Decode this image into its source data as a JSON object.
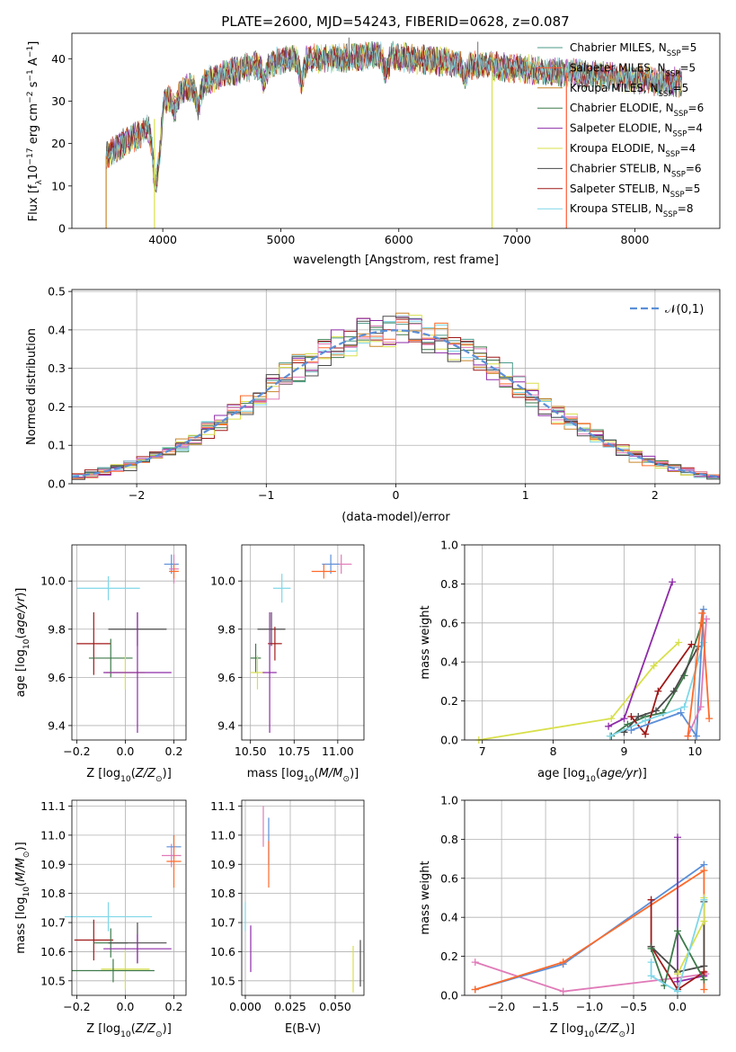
{
  "chart_data": [
    {
      "type": "line",
      "id": "spectrum",
      "title": "PLATE=2600, MJD=54243, FIBERID=0628, z=0.087",
      "xlabel": "wavelength [Angstrom, rest frame]",
      "ylabel": "Flux [f_λ 10^-17 erg cm^-2 s^-1 A^-1]",
      "xlim": [
        3230,
        8720
      ],
      "ylim": [
        0,
        46
      ],
      "xticks": [
        4000,
        5000,
        6000,
        7000,
        8000
      ],
      "yticks": [
        0,
        10,
        20,
        30,
        40
      ],
      "grid": false,
      "legend_position": "upper right",
      "continuum_x": [
        3520,
        3600,
        3800,
        3900,
        4000,
        4100,
        4300,
        4500,
        4700,
        4900,
        5100,
        5300,
        5500,
        5700,
        5900,
        6100,
        6300,
        6500,
        6700,
        6900,
        7100,
        7300,
        7500,
        7700,
        7900,
        8100,
        8300
      ],
      "continuum_y": [
        17,
        19,
        22,
        24,
        30,
        32,
        34,
        36,
        38,
        39,
        40,
        40,
        40,
        40.5,
        41,
        40,
        39.5,
        39,
        38.5,
        38,
        37.5,
        37,
        36.5,
        36,
        35.5,
        35,
        34.5
      ],
      "series": [
        {
          "name": "Chabrier MILES, N_SSP=5",
          "label": "Chabrier MILES, N",
          "n": "=5",
          "color": "#4c9a8a"
        },
        {
          "name": "Salpeter MILES, N_SSP=5",
          "label": "Salpeter MILES, N",
          "n": "=5",
          "color": "#ff5a35"
        },
        {
          "name": "Kroupa MILES, N_SSP=5",
          "label": "Kroupa MILES, N",
          "n": "=5",
          "color": "#c8862a"
        },
        {
          "name": "Chabrier ELODIE, N_SSP=6",
          "label": "Chabrier ELODIE, N",
          "n": "=6",
          "color": "#3d7a4a"
        },
        {
          "name": "Salpeter ELODIE, N_SSP=4",
          "label": "Salpeter ELODIE, N",
          "n": "=4",
          "color": "#8e2ba8"
        },
        {
          "name": "Kroupa ELODIE, N_SSP=4",
          "label": "Kroupa ELODIE, N",
          "n": "=4",
          "color": "#d8e04a"
        },
        {
          "name": "Chabrier STELIB, N_SSP=6",
          "label": "Chabrier STELIB, N",
          "n": "=6",
          "color": "#4a4a4a"
        },
        {
          "name": "Salpeter STELIB, N_SSP=5",
          "label": "Salpeter STELIB, N",
          "n": "=5",
          "color": "#a01818"
        },
        {
          "name": "Kroupa STELIB, N_SSP=8",
          "label": "Kroupa STELIB, N",
          "n": "=8",
          "color": "#7fd7e8"
        }
      ],
      "legend_subscript": "SSP",
      "drops": [
        {
          "x": 3520,
          "color": "#c8862a"
        },
        {
          "x": 3930,
          "color": "#d8e04a"
        },
        {
          "x": 6790,
          "color": "#d8e04a"
        },
        {
          "x": 7420,
          "color": "#ff5a35"
        }
      ]
    },
    {
      "type": "step",
      "id": "residuals",
      "xlabel": "(data-model)/error",
      "ylabel": "Normed distribution",
      "xlim": [
        -2.5,
        2.5
      ],
      "ylim": [
        0,
        0.505
      ],
      "xticks": [
        -2,
        -1,
        0,
        1,
        2
      ],
      "yticks": [
        0.0,
        0.1,
        0.2,
        0.3,
        0.4,
        0.5
      ],
      "grid": true,
      "legend": "𝒩(0,1)",
      "legend_position": "upper right",
      "bins": 50,
      "series_colors": [
        "#3d7a4a",
        "#4c9a8a",
        "#a01818",
        "#c8862a",
        "#d8e04a",
        "#8e2ba8",
        "#7fd7e8",
        "#ff6a2a",
        "#e07ab8",
        "#4a4a4a"
      ]
    },
    {
      "type": "errorbar",
      "id": "age_vs_z",
      "xlabel": "Z [log10(Z/Z⊙)]",
      "ylabel": "age [log10(age/yr)]",
      "xlim": [
        -0.22,
        0.25
      ],
      "ylim": [
        9.34,
        10.15
      ],
      "xticks": [
        -0.2,
        0.0,
        0.2
      ],
      "yticks": [
        9.4,
        9.6,
        9.8,
        10.0
      ],
      "grid": true,
      "points": [
        {
          "x": -0.07,
          "y": 9.97,
          "xerr": 0.13,
          "yerr": 0.05,
          "color": "#7fd7e8"
        },
        {
          "x": -0.13,
          "y": 9.74,
          "xerr": 0.07,
          "yerr": 0.13,
          "color": "#a01818"
        },
        {
          "x": -0.06,
          "y": 9.68,
          "xerr": 0.09,
          "yerr": 0.08,
          "color": "#3d7a4a"
        },
        {
          "x": 0.05,
          "y": 9.8,
          "xerr": 0.12,
          "yerr": 0.07,
          "color": "#4a4a4a"
        },
        {
          "x": 0.0,
          "y": 9.62,
          "xerr": 0.08,
          "yerr": 0.07,
          "color": "#d8e04a"
        },
        {
          "x": 0.05,
          "y": 9.62,
          "xerr": 0.14,
          "yerr": 0.25,
          "color": "#8e2ba8"
        },
        {
          "x": 0.19,
          "y": 10.07,
          "xerr": 0.03,
          "yerr": 0.04,
          "color": "#5b8fd8"
        },
        {
          "x": 0.2,
          "y": 10.05,
          "xerr": 0.02,
          "yerr": 0.06,
          "color": "#e07ab8"
        },
        {
          "x": 0.2,
          "y": 10.04,
          "xerr": 0.02,
          "yerr": 0.03,
          "color": "#ff6a2a"
        }
      ]
    },
    {
      "type": "errorbar",
      "id": "age_vs_mass",
      "xlabel": "mass [log10(M/M⊙)]",
      "ylabel": "",
      "xlim": [
        10.45,
        11.15
      ],
      "ylim": [
        9.34,
        10.15
      ],
      "xticks": [
        10.5,
        10.75,
        11.0
      ],
      "yticks": [
        9.4,
        9.6,
        9.8,
        10.0
      ],
      "grid": true,
      "points": [
        {
          "x": 10.68,
          "y": 9.97,
          "xerr": 0.05,
          "yerr": 0.06,
          "color": "#7fd7e8"
        },
        {
          "x": 10.62,
          "y": 9.8,
          "xerr": 0.08,
          "yerr": 0.07,
          "color": "#4a4a4a"
        },
        {
          "x": 10.64,
          "y": 9.74,
          "xerr": 0.04,
          "yerr": 0.07,
          "color": "#a01818"
        },
        {
          "x": 10.53,
          "y": 9.68,
          "xerr": 0.03,
          "yerr": 0.06,
          "color": "#3d7a4a"
        },
        {
          "x": 10.54,
          "y": 9.62,
          "xerr": 0.04,
          "yerr": 0.07,
          "color": "#d8e04a"
        },
        {
          "x": 10.61,
          "y": 9.62,
          "xerr": 0.04,
          "yerr": 0.25,
          "color": "#8e2ba8"
        },
        {
          "x": 11.02,
          "y": 10.07,
          "xerr": 0.06,
          "yerr": 0.04,
          "color": "#e07ab8"
        },
        {
          "x": 10.96,
          "y": 10.07,
          "xerr": 0.05,
          "yerr": 0.04,
          "color": "#5b8fd8"
        },
        {
          "x": 10.92,
          "y": 10.04,
          "xerr": 0.07,
          "yerr": 0.03,
          "color": "#ff6a2a"
        }
      ]
    },
    {
      "type": "line",
      "id": "weight_vs_age",
      "xlabel": "age [log10(age/yr)]",
      "ylabel": "mass weight",
      "xlim": [
        6.75,
        10.35
      ],
      "ylim": [
        0,
        1.0
      ],
      "xticks": [
        7,
        8,
        9,
        10
      ],
      "yticks": [
        0.0,
        0.2,
        0.4,
        0.6,
        0.8,
        1.0
      ],
      "grid": true,
      "series": [
        {
          "color": "#d8e04a",
          "x": [
            6.95,
            8.82,
            9.42,
            9.77
          ],
          "y": [
            0.0,
            0.11,
            0.38,
            0.5
          ]
        },
        {
          "color": "#8e2ba8",
          "x": [
            8.78,
            9.0,
            9.68
          ],
          "y": [
            0.07,
            0.11,
            0.81
          ]
        },
        {
          "color": "#3d7a4a",
          "x": [
            8.82,
            9.05,
            9.3,
            9.55,
            9.85,
            10.1
          ],
          "y": [
            0.02,
            0.08,
            0.12,
            0.14,
            0.33,
            0.6
          ]
        },
        {
          "color": "#4a4a4a",
          "x": [
            9.0,
            9.2,
            9.45,
            9.7,
            10.05
          ],
          "y": [
            0.04,
            0.12,
            0.15,
            0.25,
            0.48
          ]
        },
        {
          "color": "#a01818",
          "x": [
            9.1,
            9.3,
            9.48,
            9.95
          ],
          "y": [
            0.12,
            0.03,
            0.25,
            0.49
          ]
        },
        {
          "color": "#7fd7e8",
          "x": [
            8.8,
            9.3,
            9.85,
            10.12
          ],
          "y": [
            0.02,
            0.1,
            0.17,
            0.5
          ]
        },
        {
          "color": "#5b8fd8",
          "x": [
            9.1,
            9.8,
            10.02,
            10.12
          ],
          "y": [
            0.05,
            0.14,
            0.02,
            0.67
          ]
        },
        {
          "color": "#e07ab8",
          "x": [
            9.9,
            10.08,
            10.16
          ],
          "y": [
            0.02,
            0.17,
            0.62
          ]
        },
        {
          "color": "#ff6a2a",
          "x": [
            9.9,
            10.1,
            10.2
          ],
          "y": [
            0.02,
            0.65,
            0.11
          ]
        }
      ]
    },
    {
      "type": "errorbar",
      "id": "mass_vs_z",
      "xlabel": "Z [log10(Z/Z⊙)]",
      "ylabel": "mass [log10(M/M⊙)]",
      "xlim": [
        -0.22,
        0.25
      ],
      "ylim": [
        10.45,
        11.12
      ],
      "xticks": [
        -0.2,
        0.0,
        0.2
      ],
      "yticks": [
        10.5,
        10.6,
        10.7,
        10.8,
        10.9,
        11.0,
        11.1
      ],
      "grid": true,
      "points": [
        {
          "x": -0.07,
          "y": 10.72,
          "xerr": 0.18,
          "yerr": 0.05,
          "color": "#7fd7e8"
        },
        {
          "x": -0.13,
          "y": 10.64,
          "xerr": 0.08,
          "yerr": 0.07,
          "color": "#a01818"
        },
        {
          "x": -0.06,
          "y": 10.63,
          "xerr": 0.07,
          "yerr": 0.05,
          "color": "#3d7a4a"
        },
        {
          "x": 0.05,
          "y": 10.63,
          "xerr": 0.12,
          "yerr": 0.07,
          "color": "#4a4a4a"
        },
        {
          "x": 0.0,
          "y": 10.54,
          "xerr": 0.1,
          "yerr": 0.07,
          "color": "#d8e04a"
        },
        {
          "x": 0.05,
          "y": 10.61,
          "xerr": 0.14,
          "yerr": 0.05,
          "color": "#8e2ba8"
        },
        {
          "x": -0.05,
          "y": 10.535,
          "xerr": 0.17,
          "yerr": 0.04,
          "color": "#3d7a4a"
        },
        {
          "x": 0.19,
          "y": 10.93,
          "xerr": 0.04,
          "yerr": 0.04,
          "color": "#e07ab8"
        },
        {
          "x": 0.2,
          "y": 10.96,
          "xerr": 0.03,
          "yerr": 0.04,
          "color": "#5b8fd8"
        },
        {
          "x": 0.2,
          "y": 10.91,
          "xerr": 0.03,
          "yerr": 0.09,
          "color": "#ff6a2a"
        }
      ]
    },
    {
      "type": "errorbar",
      "id": "mass_vs_ebv",
      "xlabel": "E(B-V)",
      "ylabel": "",
      "xlim": [
        -0.002,
        0.066
      ],
      "ylim": [
        10.45,
        11.12
      ],
      "xticks": [
        0.0,
        0.025,
        0.05
      ],
      "yticks": [
        10.5,
        10.6,
        10.7,
        10.8,
        10.9,
        11.0,
        11.1
      ],
      "grid": true,
      "points": [
        {
          "x": 0.0,
          "y": 10.72,
          "xerr": 0.0,
          "yerr": 0.05,
          "color": "#7fd7e8"
        },
        {
          "x": 0.003,
          "y": 10.61,
          "xerr": 0.0,
          "yerr": 0.08,
          "color": "#8e2ba8"
        },
        {
          "x": 0.01,
          "y": 11.03,
          "xerr": 0.0,
          "yerr": 0.07,
          "color": "#e07ab8"
        },
        {
          "x": 0.013,
          "y": 10.98,
          "xerr": 0.0,
          "yerr": 0.08,
          "color": "#5b8fd8"
        },
        {
          "x": 0.013,
          "y": 10.9,
          "xerr": 0.0,
          "yerr": 0.08,
          "color": "#ff6a2a"
        },
        {
          "x": 0.06,
          "y": 10.54,
          "xerr": 0.0,
          "yerr": 0.08,
          "color": "#d8e04a"
        },
        {
          "x": 0.064,
          "y": 10.56,
          "xerr": 0.0,
          "yerr": 0.08,
          "color": "#4a4a4a"
        }
      ]
    },
    {
      "type": "line",
      "id": "weight_vs_z",
      "xlabel": "Z [log10(Z/Z⊙)]",
      "ylabel": "mass weight",
      "xlim": [
        -2.42,
        0.48
      ],
      "ylim": [
        0,
        1.0
      ],
      "xticks": [
        -2.0,
        -1.5,
        -1.0,
        -0.5,
        0.0
      ],
      "yticks": [
        0.0,
        0.2,
        0.4,
        0.6,
        0.8,
        1.0
      ],
      "grid": true,
      "series": [
        {
          "color": "#e07ab8",
          "x": [
            -2.3,
            -1.3,
            0.0,
            0.32
          ],
          "y": [
            0.17,
            0.02,
            0.09,
            0.11
          ]
        },
        {
          "color": "#5b8fd8",
          "x": [
            -2.3,
            -1.3,
            0.3
          ],
          "y": [
            0.03,
            0.16,
            0.67
          ]
        },
        {
          "color": "#ff6a2a",
          "x": [
            -2.3,
            -1.3,
            0.3,
            0.3
          ],
          "y": [
            0.03,
            0.17,
            0.64,
            0.03
          ]
        },
        {
          "color": "#8e2ba8",
          "x": [
            0.0,
            0.0,
            0.3
          ],
          "y": [
            0.81,
            0.07,
            0.1
          ]
        },
        {
          "color": "#a01818",
          "x": [
            -0.3,
            -0.3,
            0.0,
            0.3
          ],
          "y": [
            0.49,
            0.25,
            0.03,
            0.12
          ]
        },
        {
          "color": "#4a4a4a",
          "x": [
            -0.3,
            0.0,
            0.3,
            0.3
          ],
          "y": [
            0.25,
            0.12,
            0.15,
            0.48
          ]
        },
        {
          "color": "#3d7a4a",
          "x": [
            -0.3,
            -0.15,
            0.0,
            0.3
          ],
          "y": [
            0.24,
            0.05,
            0.33,
            0.08
          ]
        },
        {
          "color": "#d8e04a",
          "x": [
            0.0,
            0.3,
            0.3
          ],
          "y": [
            0.11,
            0.38,
            0.5
          ]
        },
        {
          "color": "#7fd7e8",
          "x": [
            -0.3,
            -0.3,
            0.0,
            0.3
          ],
          "y": [
            0.17,
            0.1,
            0.02,
            0.49
          ]
        }
      ]
    }
  ]
}
